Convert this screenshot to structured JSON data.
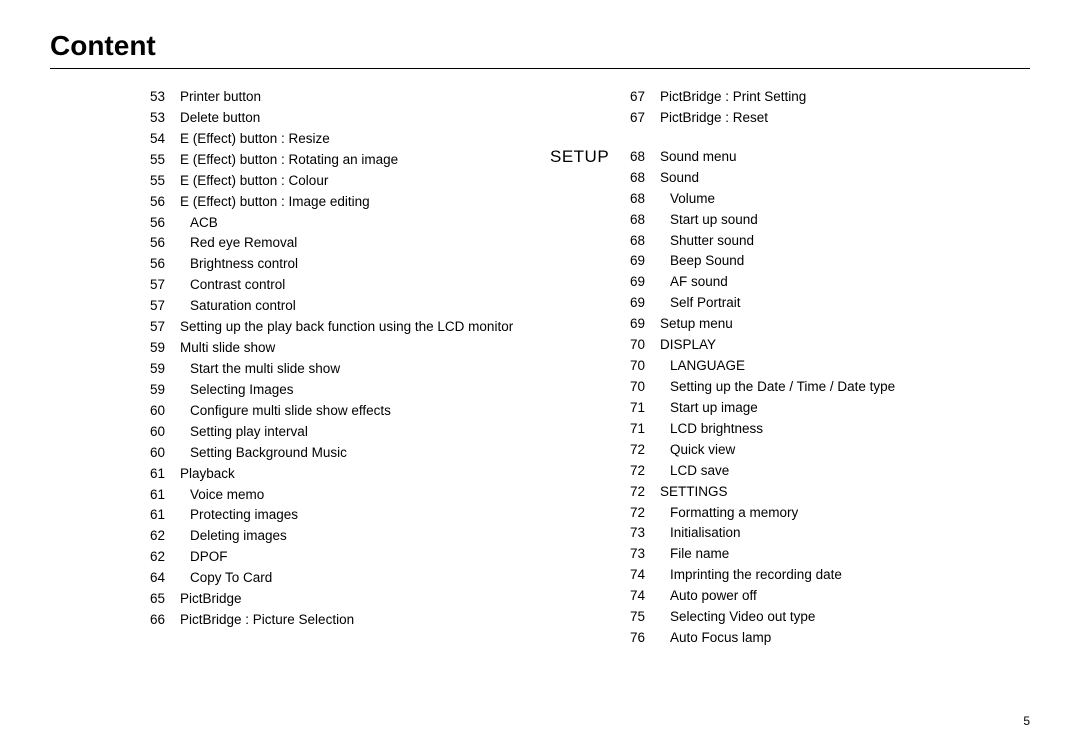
{
  "title": "Content",
  "page_number": "5",
  "colors": {
    "text": "#000000",
    "background": "#ffffff",
    "rule": "#000000"
  },
  "left_column": [
    {
      "page": "53",
      "label": "Printer button",
      "indent": 0
    },
    {
      "page": "53",
      "label": "Delete button",
      "indent": 0
    },
    {
      "page": "54",
      "label": "E (Effect) button : Resize",
      "indent": 0
    },
    {
      "page": "55",
      "label": "E (Effect) button : Rotating an image",
      "indent": 0
    },
    {
      "page": "55",
      "label": "E (Effect) button : Colour",
      "indent": 0
    },
    {
      "page": "56",
      "label": "E (Effect) button : Image editing",
      "indent": 0
    },
    {
      "page": "56",
      "label": "ACB",
      "indent": 1
    },
    {
      "page": "56",
      "label": "Red eye Removal",
      "indent": 1
    },
    {
      "page": "56",
      "label": "Brightness control",
      "indent": 1
    },
    {
      "page": "57",
      "label": "Contrast control",
      "indent": 1
    },
    {
      "page": "57",
      "label": "Saturation control",
      "indent": 1
    },
    {
      "page": "57",
      "label": "Setting up the play back function using the LCD monitor",
      "indent": 0
    },
    {
      "page": "59",
      "label": "Multi slide show",
      "indent": 0
    },
    {
      "page": "59",
      "label": "Start the multi slide show",
      "indent": 1
    },
    {
      "page": "59",
      "label": "Selecting Images",
      "indent": 1
    },
    {
      "page": "60",
      "label": "Configure multi slide show effects",
      "indent": 1
    },
    {
      "page": "60",
      "label": "Setting play interval",
      "indent": 1
    },
    {
      "page": "60",
      "label": "Setting Background Music",
      "indent": 1
    },
    {
      "page": "61",
      "label": "Playback",
      "indent": 0
    },
    {
      "page": "61",
      "label": "Voice memo",
      "indent": 1
    },
    {
      "page": "61",
      "label": "Protecting images",
      "indent": 1
    },
    {
      "page": "62",
      "label": "Deleting images",
      "indent": 1
    },
    {
      "page": "62",
      "label": "DPOF",
      "indent": 1
    },
    {
      "page": "64",
      "label": "Copy To Card",
      "indent": 1
    },
    {
      "page": "65",
      "label": "PictBridge",
      "indent": 0
    },
    {
      "page": "66",
      "label": "PictBridge : Picture Selection",
      "indent": 0
    }
  ],
  "right_top": [
    {
      "page": "67",
      "label": "PictBridge : Print Setting",
      "indent": 0
    },
    {
      "page": "67",
      "label": "PictBridge : Reset",
      "indent": 0
    }
  ],
  "section_label": "SETUP",
  "right_setup": [
    {
      "page": "68",
      "label": "Sound menu",
      "indent": 0
    },
    {
      "page": "68",
      "label": "Sound",
      "indent": 0
    },
    {
      "page": "68",
      "label": "Volume",
      "indent": 1
    },
    {
      "page": "68",
      "label": "Start up sound",
      "indent": 1
    },
    {
      "page": "68",
      "label": "Shutter sound",
      "indent": 1
    },
    {
      "page": "69",
      "label": "Beep Sound",
      "indent": 1
    },
    {
      "page": "69",
      "label": "AF sound",
      "indent": 1
    },
    {
      "page": "69",
      "label": "Self Portrait",
      "indent": 1
    },
    {
      "page": "69",
      "label": "Setup menu",
      "indent": 0
    },
    {
      "page": "70",
      "label": "DISPLAY",
      "indent": 0
    },
    {
      "page": "70",
      "label": "LANGUAGE",
      "indent": 1
    },
    {
      "page": "70",
      "label": "Setting up the Date / Time / Date type",
      "indent": 1
    },
    {
      "page": "71",
      "label": "Start up image",
      "indent": 1
    },
    {
      "page": "71",
      "label": "LCD brightness",
      "indent": 1
    },
    {
      "page": "72",
      "label": "Quick view",
      "indent": 1
    },
    {
      "page": "72",
      "label": "LCD save",
      "indent": 1
    },
    {
      "page": "72",
      "label": "SETTINGS",
      "indent": 0
    },
    {
      "page": "72",
      "label": "Formatting a memory",
      "indent": 1
    },
    {
      "page": "73",
      "label": "Initialisation",
      "indent": 1
    },
    {
      "page": "73",
      "label": "File name",
      "indent": 1
    },
    {
      "page": "74",
      "label": "Imprinting the recording date",
      "indent": 1
    },
    {
      "page": "74",
      "label": "Auto power off",
      "indent": 1
    },
    {
      "page": "75",
      "label": "Selecting Video out type",
      "indent": 1
    },
    {
      "page": "76",
      "label": "Auto Focus lamp",
      "indent": 1
    }
  ]
}
